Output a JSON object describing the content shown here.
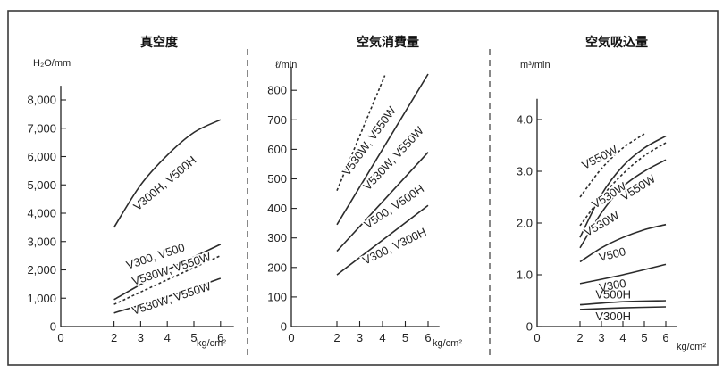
{
  "chart_data": [
    {
      "type": "line",
      "title": "真空度",
      "ylabel": "H₂O/mm",
      "xlabel": "kg/cm²",
      "xlim": [
        0,
        6.5
      ],
      "ylim": [
        0,
        8500
      ],
      "xticks": [
        "0",
        "2",
        "3",
        "4",
        "5",
        "6"
      ],
      "yticks": [
        "0",
        "1,000",
        "2,000",
        "3,000",
        "4,000",
        "5,000",
        "6,000",
        "7,000",
        "8,000"
      ],
      "series": [
        {
          "name": "V300H, V500H",
          "x": [
            2,
            3,
            4,
            5,
            6
          ],
          "y": [
            3500,
            5000,
            6050,
            6850,
            7300
          ],
          "dashed": false
        },
        {
          "name": "V300, V500",
          "x": [
            2,
            4,
            6
          ],
          "y": [
            950,
            2000,
            2900
          ],
          "dashed": false
        },
        {
          "name": "V530W, V550W",
          "x": [
            2,
            4,
            6
          ],
          "y": [
            780,
            1650,
            2500
          ],
          "dashed": true
        },
        {
          "name": "V530W, V550W",
          "x": [
            2,
            4,
            6
          ],
          "y": [
            480,
            1050,
            1700
          ],
          "dashed": false
        }
      ]
    },
    {
      "type": "line",
      "title": "空気消費量",
      "ylabel": "ℓ/min",
      "xlabel": "kg/cm²",
      "xlim": [
        0,
        6.5
      ],
      "ylim": [
        0,
        880
      ],
      "xticks": [
        "0",
        "2",
        "3",
        "4",
        "5",
        "6"
      ],
      "yticks": [
        "0",
        "100",
        "200",
        "300",
        "400",
        "500",
        "600",
        "700",
        "800"
      ],
      "series": [
        {
          "name": "V530W, V550W",
          "x": [
            2,
            4.1
          ],
          "y": [
            460,
            850
          ],
          "dashed": true
        },
        {
          "name": "V530W, V550W",
          "x": [
            2,
            6
          ],
          "y": [
            345,
            855
          ],
          "dashed": false
        },
        {
          "name": "V500, V500H",
          "x": [
            2,
            6
          ],
          "y": [
            255,
            590
          ],
          "dashed": false
        },
        {
          "name": "V300, V300H",
          "x": [
            2,
            6
          ],
          "y": [
            175,
            410
          ],
          "dashed": false
        }
      ]
    },
    {
      "type": "line",
      "title": "空気吸込量",
      "ylabel": "m³/min",
      "xlabel": "kg/cm²",
      "xlim": [
        0,
        6.5
      ],
      "ylim": [
        0,
        4.4
      ],
      "xticks": [
        "0",
        "2",
        "3",
        "4",
        "5",
        "6"
      ],
      "yticks": [
        "0",
        "1.0",
        "2.0",
        "3.0",
        "4.0"
      ],
      "series": [
        {
          "name": "V550W",
          "x": [
            2,
            3,
            4,
            5
          ],
          "y": [
            2.5,
            3.05,
            3.45,
            3.72
          ],
          "dashed": true
        },
        {
          "name": "V530W",
          "x": [
            2,
            3,
            4,
            5,
            6
          ],
          "y": [
            1.95,
            2.5,
            2.95,
            3.3,
            3.55
          ],
          "dashed": true
        },
        {
          "name": "V550W",
          "x": [
            2,
            3,
            4,
            5,
            6
          ],
          "y": [
            1.72,
            2.55,
            3.1,
            3.45,
            3.68
          ],
          "dashed": false
        },
        {
          "name": "V530W",
          "x": [
            2,
            3,
            4,
            5,
            6
          ],
          "y": [
            1.52,
            2.2,
            2.7,
            3.0,
            3.22
          ],
          "dashed": false
        },
        {
          "name": "V500",
          "x": [
            2,
            3,
            4,
            5,
            6
          ],
          "y": [
            1.25,
            1.52,
            1.72,
            1.87,
            1.97
          ],
          "dashed": false
        },
        {
          "name": "V300",
          "x": [
            2,
            4,
            6
          ],
          "y": [
            0.83,
            1.0,
            1.2
          ],
          "dashed": false
        },
        {
          "name": "V500H",
          "x": [
            2,
            4,
            6
          ],
          "y": [
            0.42,
            0.48,
            0.5
          ],
          "dashed": false
        },
        {
          "name": "V300H",
          "x": [
            2,
            4,
            6
          ],
          "y": [
            0.33,
            0.36,
            0.38
          ],
          "dashed": false
        }
      ]
    }
  ]
}
